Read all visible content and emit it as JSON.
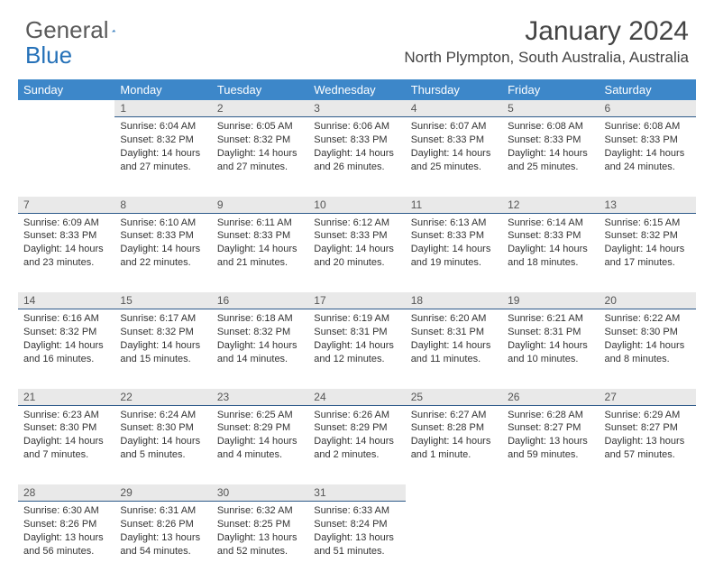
{
  "brand": {
    "part1": "General",
    "part2": "Blue"
  },
  "title": "January 2024",
  "location": "North Plympton, South Australia, Australia",
  "header_bg": "#3d87c9",
  "daynum_bg": "#e9e9e9",
  "daynum_border": "#2d5a8a",
  "dow": [
    "Sunday",
    "Monday",
    "Tuesday",
    "Wednesday",
    "Thursday",
    "Friday",
    "Saturday"
  ],
  "weeks": [
    [
      {
        "n": "",
        "sr": "",
        "ss": "",
        "dl": ""
      },
      {
        "n": "1",
        "sr": "Sunrise: 6:04 AM",
        "ss": "Sunset: 8:32 PM",
        "dl": "Daylight: 14 hours and 27 minutes."
      },
      {
        "n": "2",
        "sr": "Sunrise: 6:05 AM",
        "ss": "Sunset: 8:32 PM",
        "dl": "Daylight: 14 hours and 27 minutes."
      },
      {
        "n": "3",
        "sr": "Sunrise: 6:06 AM",
        "ss": "Sunset: 8:33 PM",
        "dl": "Daylight: 14 hours and 26 minutes."
      },
      {
        "n": "4",
        "sr": "Sunrise: 6:07 AM",
        "ss": "Sunset: 8:33 PM",
        "dl": "Daylight: 14 hours and 25 minutes."
      },
      {
        "n": "5",
        "sr": "Sunrise: 6:08 AM",
        "ss": "Sunset: 8:33 PM",
        "dl": "Daylight: 14 hours and 25 minutes."
      },
      {
        "n": "6",
        "sr": "Sunrise: 6:08 AM",
        "ss": "Sunset: 8:33 PM",
        "dl": "Daylight: 14 hours and 24 minutes."
      }
    ],
    [
      {
        "n": "7",
        "sr": "Sunrise: 6:09 AM",
        "ss": "Sunset: 8:33 PM",
        "dl": "Daylight: 14 hours and 23 minutes."
      },
      {
        "n": "8",
        "sr": "Sunrise: 6:10 AM",
        "ss": "Sunset: 8:33 PM",
        "dl": "Daylight: 14 hours and 22 minutes."
      },
      {
        "n": "9",
        "sr": "Sunrise: 6:11 AM",
        "ss": "Sunset: 8:33 PM",
        "dl": "Daylight: 14 hours and 21 minutes."
      },
      {
        "n": "10",
        "sr": "Sunrise: 6:12 AM",
        "ss": "Sunset: 8:33 PM",
        "dl": "Daylight: 14 hours and 20 minutes."
      },
      {
        "n": "11",
        "sr": "Sunrise: 6:13 AM",
        "ss": "Sunset: 8:33 PM",
        "dl": "Daylight: 14 hours and 19 minutes."
      },
      {
        "n": "12",
        "sr": "Sunrise: 6:14 AM",
        "ss": "Sunset: 8:33 PM",
        "dl": "Daylight: 14 hours and 18 minutes."
      },
      {
        "n": "13",
        "sr": "Sunrise: 6:15 AM",
        "ss": "Sunset: 8:32 PM",
        "dl": "Daylight: 14 hours and 17 minutes."
      }
    ],
    [
      {
        "n": "14",
        "sr": "Sunrise: 6:16 AM",
        "ss": "Sunset: 8:32 PM",
        "dl": "Daylight: 14 hours and 16 minutes."
      },
      {
        "n": "15",
        "sr": "Sunrise: 6:17 AM",
        "ss": "Sunset: 8:32 PM",
        "dl": "Daylight: 14 hours and 15 minutes."
      },
      {
        "n": "16",
        "sr": "Sunrise: 6:18 AM",
        "ss": "Sunset: 8:32 PM",
        "dl": "Daylight: 14 hours and 14 minutes."
      },
      {
        "n": "17",
        "sr": "Sunrise: 6:19 AM",
        "ss": "Sunset: 8:31 PM",
        "dl": "Daylight: 14 hours and 12 minutes."
      },
      {
        "n": "18",
        "sr": "Sunrise: 6:20 AM",
        "ss": "Sunset: 8:31 PM",
        "dl": "Daylight: 14 hours and 11 minutes."
      },
      {
        "n": "19",
        "sr": "Sunrise: 6:21 AM",
        "ss": "Sunset: 8:31 PM",
        "dl": "Daylight: 14 hours and 10 minutes."
      },
      {
        "n": "20",
        "sr": "Sunrise: 6:22 AM",
        "ss": "Sunset: 8:30 PM",
        "dl": "Daylight: 14 hours and 8 minutes."
      }
    ],
    [
      {
        "n": "21",
        "sr": "Sunrise: 6:23 AM",
        "ss": "Sunset: 8:30 PM",
        "dl": "Daylight: 14 hours and 7 minutes."
      },
      {
        "n": "22",
        "sr": "Sunrise: 6:24 AM",
        "ss": "Sunset: 8:30 PM",
        "dl": "Daylight: 14 hours and 5 minutes."
      },
      {
        "n": "23",
        "sr": "Sunrise: 6:25 AM",
        "ss": "Sunset: 8:29 PM",
        "dl": "Daylight: 14 hours and 4 minutes."
      },
      {
        "n": "24",
        "sr": "Sunrise: 6:26 AM",
        "ss": "Sunset: 8:29 PM",
        "dl": "Daylight: 14 hours and 2 minutes."
      },
      {
        "n": "25",
        "sr": "Sunrise: 6:27 AM",
        "ss": "Sunset: 8:28 PM",
        "dl": "Daylight: 14 hours and 1 minute."
      },
      {
        "n": "26",
        "sr": "Sunrise: 6:28 AM",
        "ss": "Sunset: 8:27 PM",
        "dl": "Daylight: 13 hours and 59 minutes."
      },
      {
        "n": "27",
        "sr": "Sunrise: 6:29 AM",
        "ss": "Sunset: 8:27 PM",
        "dl": "Daylight: 13 hours and 57 minutes."
      }
    ],
    [
      {
        "n": "28",
        "sr": "Sunrise: 6:30 AM",
        "ss": "Sunset: 8:26 PM",
        "dl": "Daylight: 13 hours and 56 minutes."
      },
      {
        "n": "29",
        "sr": "Sunrise: 6:31 AM",
        "ss": "Sunset: 8:26 PM",
        "dl": "Daylight: 13 hours and 54 minutes."
      },
      {
        "n": "30",
        "sr": "Sunrise: 6:32 AM",
        "ss": "Sunset: 8:25 PM",
        "dl": "Daylight: 13 hours and 52 minutes."
      },
      {
        "n": "31",
        "sr": "Sunrise: 6:33 AM",
        "ss": "Sunset: 8:24 PM",
        "dl": "Daylight: 13 hours and 51 minutes."
      },
      {
        "n": "",
        "sr": "",
        "ss": "",
        "dl": ""
      },
      {
        "n": "",
        "sr": "",
        "ss": "",
        "dl": ""
      },
      {
        "n": "",
        "sr": "",
        "ss": "",
        "dl": ""
      }
    ]
  ]
}
